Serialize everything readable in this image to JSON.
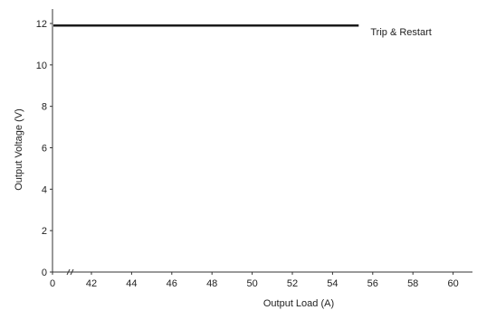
{
  "chart_data": {
    "type": "line",
    "xlabel": "Output Load (A)",
    "ylabel": "Output Voltage (V)",
    "x_ticks": [
      0,
      42,
      44,
      46,
      48,
      50,
      52,
      54,
      56,
      58,
      60
    ],
    "x_axis_break": "between 0 and 42",
    "y_ticks": [
      0,
      2,
      4,
      6,
      8,
      10,
      12
    ],
    "xlim": [
      40,
      61
    ],
    "ylim": [
      0,
      12.8
    ],
    "grid": false,
    "series": [
      {
        "x": [
          40,
          55.3
        ],
        "y": [
          11.9,
          11.9
        ]
      }
    ],
    "annotations": [
      {
        "text": "Trip & Restart",
        "x": 55.8,
        "y": 11.6
      }
    ]
  }
}
